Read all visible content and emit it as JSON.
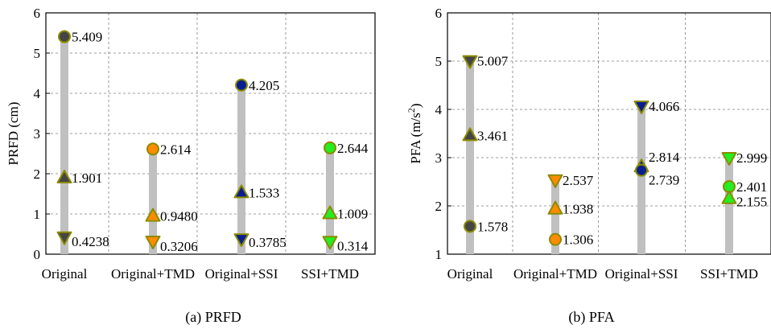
{
  "figure": {
    "captions": [
      "(a) PRFD",
      "(b) PFA"
    ]
  },
  "marker_colors": {
    "Original": "#454545",
    "Original+TMD": "#ff8c00",
    "Original+SSI": "#0a1f8f",
    "SSI+TMD": "#22ee22",
    "edge": "#8b8b00",
    "range_bar": "#c0c0c0"
  },
  "chart_data": [
    {
      "type": "scatter",
      "title": "",
      "caption": "(a) PRFD",
      "xlabel": "",
      "ylabel": "PRFD (cm)",
      "ylim": [
        0,
        6
      ],
      "yticks": [
        0,
        1,
        2,
        3,
        4,
        5,
        6
      ],
      "categories": [
        "Original",
        "Original+TMD",
        "Original+SSI",
        "SSI+TMD"
      ],
      "grid": true,
      "legend": "none",
      "range_bars": [
        {
          "category": "Original",
          "low": 0.4238,
          "high": 5.409
        },
        {
          "category": "Original+TMD",
          "low": 0.3206,
          "high": 2.614
        },
        {
          "category": "Original+SSI",
          "low": 0.3785,
          "high": 4.205
        },
        {
          "category": "SSI+TMD",
          "low": 0.314,
          "high": 2.644
        }
      ],
      "points": [
        {
          "category": "Original",
          "marker": "circle",
          "value": 5.409,
          "label": "5.409"
        },
        {
          "category": "Original",
          "marker": "triangle-up",
          "value": 1.901,
          "label": "1.901"
        },
        {
          "category": "Original",
          "marker": "triangle-down",
          "value": 0.4238,
          "label": "0.4238"
        },
        {
          "category": "Original+TMD",
          "marker": "circle",
          "value": 2.614,
          "label": "2.614"
        },
        {
          "category": "Original+TMD",
          "marker": "triangle-up",
          "value": 0.948,
          "label": "0.9480"
        },
        {
          "category": "Original+TMD",
          "marker": "triangle-down",
          "value": 0.3206,
          "label": "0.3206"
        },
        {
          "category": "Original+SSI",
          "marker": "circle",
          "value": 4.205,
          "label": "4.205"
        },
        {
          "category": "Original+SSI",
          "marker": "triangle-up",
          "value": 1.533,
          "label": "1.533"
        },
        {
          "category": "Original+SSI",
          "marker": "triangle-down",
          "value": 0.3785,
          "label": "0.3785"
        },
        {
          "category": "SSI+TMD",
          "marker": "circle",
          "value": 2.644,
          "label": "2.644"
        },
        {
          "category": "SSI+TMD",
          "marker": "triangle-up",
          "value": 1.009,
          "label": "1.009"
        },
        {
          "category": "SSI+TMD",
          "marker": "triangle-down",
          "value": 0.314,
          "label": "0.314"
        }
      ]
    },
    {
      "type": "scatter",
      "title": "",
      "caption": "(b) PFA",
      "xlabel": "",
      "ylabel": "PFA (m/s²)",
      "ylim": [
        1,
        6
      ],
      "yticks": [
        1,
        2,
        3,
        4,
        5,
        6
      ],
      "categories": [
        "Original",
        "Original+TMD",
        "Original+SSI",
        "SSI+TMD"
      ],
      "grid": true,
      "legend": "none",
      "range_bars": [
        {
          "category": "Original",
          "low": 1.578,
          "high": 5.007
        },
        {
          "category": "Original+TMD",
          "low": 1.306,
          "high": 2.537
        },
        {
          "category": "Original+SSI",
          "low": 2.739,
          "high": 4.066
        },
        {
          "category": "SSI+TMD",
          "low": 2.155,
          "high": 2.999
        }
      ],
      "points": [
        {
          "category": "Original",
          "marker": "triangle-down",
          "value": 5.007,
          "label": "5.007"
        },
        {
          "category": "Original",
          "marker": "triangle-up",
          "value": 3.461,
          "label": "3.461"
        },
        {
          "category": "Original",
          "marker": "circle",
          "value": 1.578,
          "label": "1.578"
        },
        {
          "category": "Original+TMD",
          "marker": "triangle-down",
          "value": 2.537,
          "label": "2.537"
        },
        {
          "category": "Original+TMD",
          "marker": "triangle-up",
          "value": 1.938,
          "label": "1.938"
        },
        {
          "category": "Original+TMD",
          "marker": "circle",
          "value": 1.306,
          "label": "1.306"
        },
        {
          "category": "Original+SSI",
          "marker": "triangle-down",
          "value": 4.066,
          "label": "4.066"
        },
        {
          "category": "Original+SSI",
          "marker": "triangle-up",
          "value": 2.814,
          "label": "2.814"
        },
        {
          "category": "Original+SSI",
          "marker": "circle",
          "value": 2.739,
          "label": "2.739"
        },
        {
          "category": "SSI+TMD",
          "marker": "triangle-down",
          "value": 2.999,
          "label": "2.999"
        },
        {
          "category": "SSI+TMD",
          "marker": "circle",
          "value": 2.401,
          "label": "2.401"
        },
        {
          "category": "SSI+TMD",
          "marker": "triangle-up",
          "value": 2.155,
          "label": "2.155"
        }
      ]
    }
  ]
}
